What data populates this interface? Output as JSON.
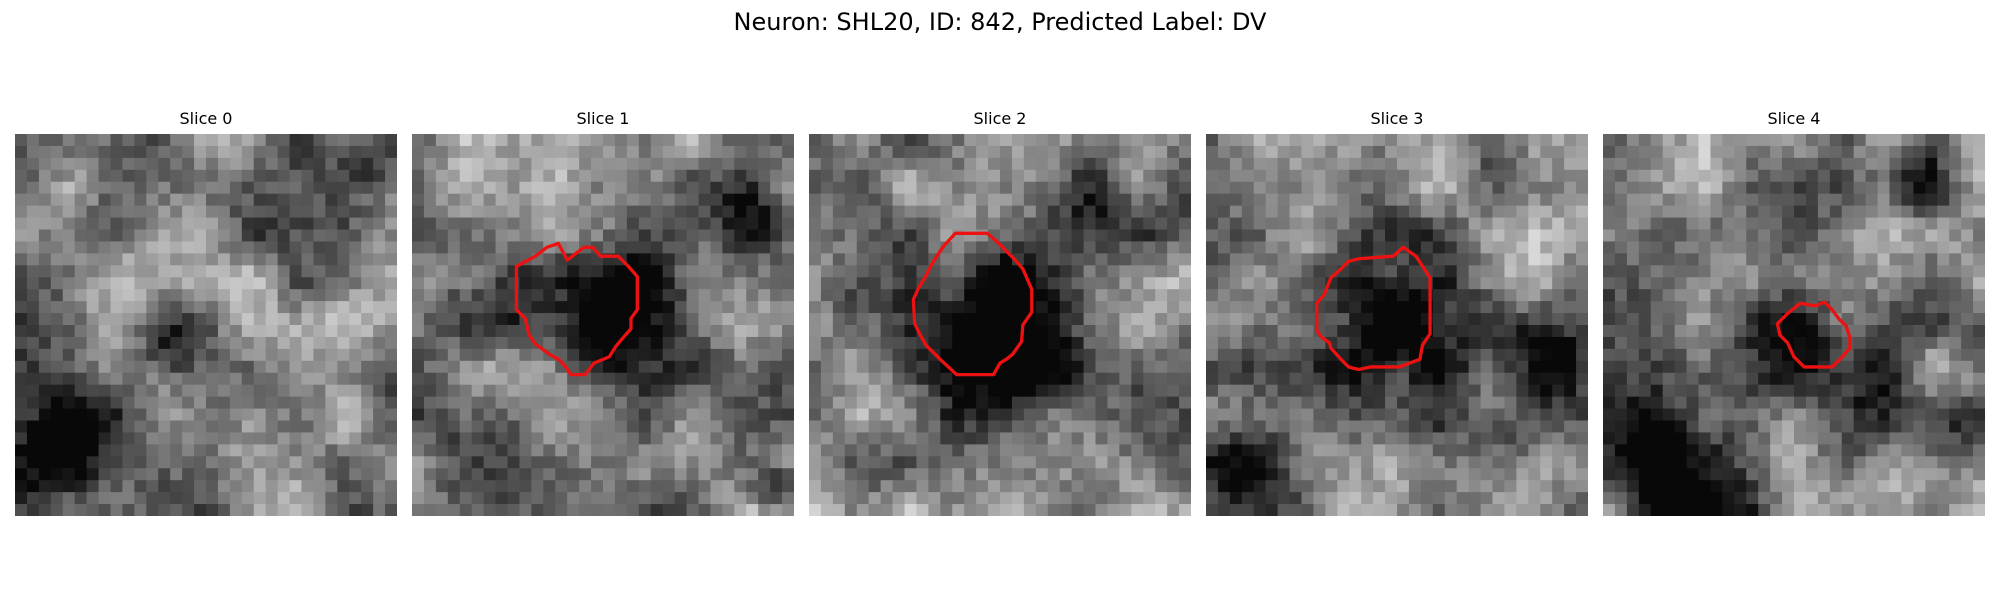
{
  "figure": {
    "title": "Neuron: SHL20, ID: 842, Predicted Label: DV"
  },
  "panels": [
    {
      "title": "Slice 0",
      "has_contour": false
    },
    {
      "title": "Slice 1",
      "has_contour": true
    },
    {
      "title": "Slice 2",
      "has_contour": true
    },
    {
      "title": "Slice 3",
      "has_contour": true
    },
    {
      "title": "Slice 4",
      "has_contour": true
    }
  ],
  "colors": {
    "contour": "#ee1111",
    "background": "#ffffff"
  }
}
